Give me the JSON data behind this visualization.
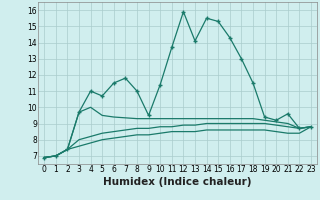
{
  "xlabel": "Humidex (Indice chaleur)",
  "x_values": [
    0,
    1,
    2,
    3,
    4,
    5,
    6,
    7,
    8,
    9,
    10,
    11,
    12,
    13,
    14,
    15,
    16,
    17,
    18,
    19,
    20,
    21,
    22,
    23
  ],
  "line1": [
    6.9,
    7.0,
    7.4,
    9.7,
    11.0,
    10.7,
    11.5,
    11.8,
    11.0,
    9.5,
    11.4,
    13.7,
    15.9,
    14.1,
    15.5,
    15.3,
    14.3,
    13.0,
    11.5,
    9.4,
    9.2,
    9.6,
    8.7,
    8.8
  ],
  "line2": [
    6.9,
    7.0,
    7.4,
    9.7,
    10.0,
    9.5,
    9.4,
    9.35,
    9.3,
    9.3,
    9.3,
    9.3,
    9.3,
    9.3,
    9.3,
    9.3,
    9.3,
    9.3,
    9.3,
    9.2,
    9.1,
    9.0,
    8.7,
    8.8
  ],
  "line3": [
    6.9,
    7.0,
    7.4,
    8.0,
    8.2,
    8.4,
    8.5,
    8.6,
    8.7,
    8.7,
    8.8,
    8.8,
    8.9,
    8.9,
    9.0,
    9.0,
    9.0,
    9.0,
    9.0,
    9.0,
    8.9,
    8.8,
    8.7,
    8.8
  ],
  "line4": [
    6.9,
    7.0,
    7.4,
    7.6,
    7.8,
    8.0,
    8.1,
    8.2,
    8.3,
    8.3,
    8.4,
    8.5,
    8.5,
    8.5,
    8.6,
    8.6,
    8.6,
    8.6,
    8.6,
    8.6,
    8.5,
    8.4,
    8.4,
    8.8
  ],
  "color": "#1a7a6a",
  "bg_color": "#d0eeee",
  "grid_color": "#aacccc",
  "ylim": [
    6.5,
    16.5
  ],
  "xlim": [
    -0.5,
    23.5
  ],
  "yticks": [
    7,
    8,
    9,
    10,
    11,
    12,
    13,
    14,
    15,
    16
  ],
  "xticks": [
    0,
    1,
    2,
    3,
    4,
    5,
    6,
    7,
    8,
    9,
    10,
    11,
    12,
    13,
    14,
    15,
    16,
    17,
    18,
    19,
    20,
    21,
    22,
    23
  ],
  "tick_fontsize": 5.5,
  "xlabel_fontsize": 7.5
}
